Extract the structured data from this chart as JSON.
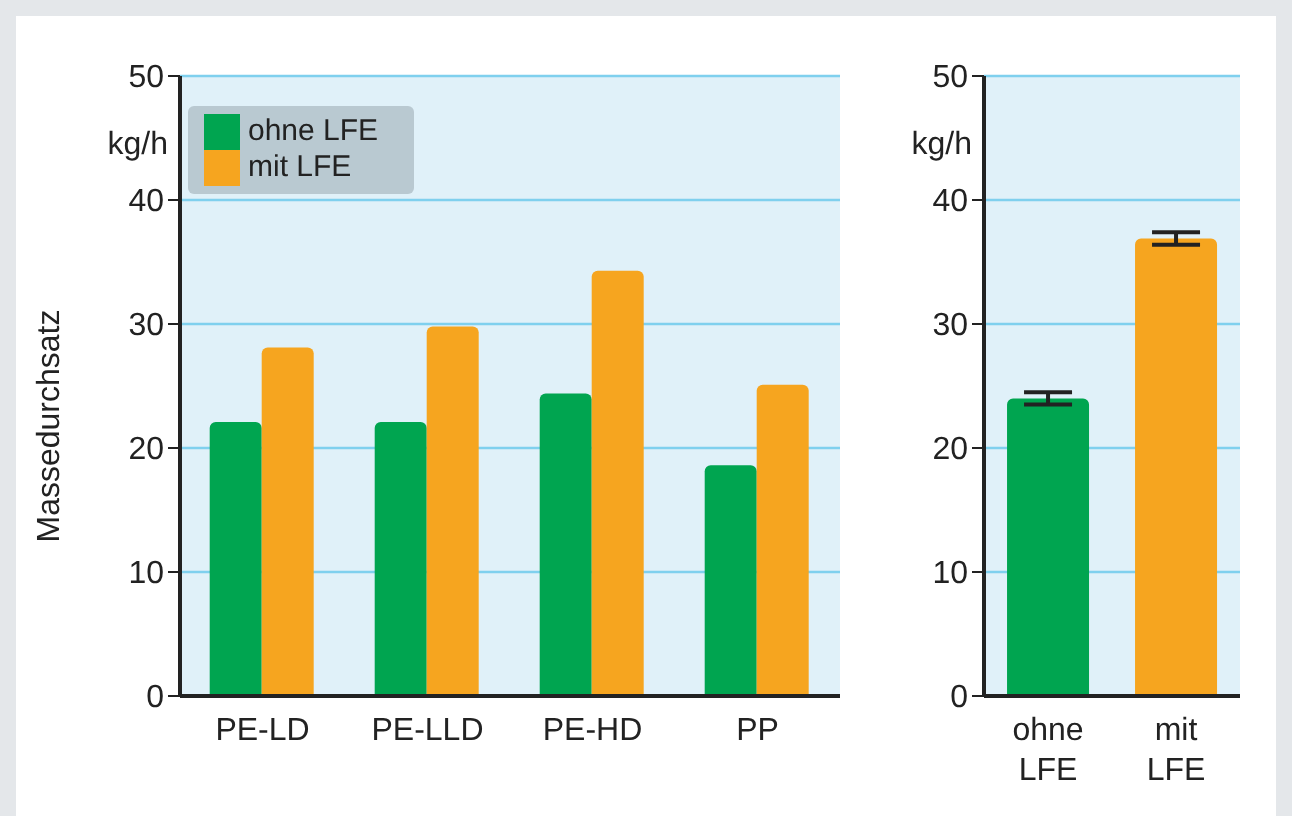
{
  "chart_data": [
    {
      "type": "bar",
      "ylabel": "Massedurchsatz",
      "annotations": [
        "kg/h"
      ],
      "categories": [
        "PE-LD",
        "PE-LLD",
        "PE-HD",
        "PP"
      ],
      "series": [
        {
          "name": "ohne LFE",
          "color": "#00a550",
          "values": [
            22.1,
            22.1,
            24.4,
            18.6
          ]
        },
        {
          "name": "mit LFE",
          "color": "#f6a51f",
          "values": [
            28.1,
            29.8,
            34.3,
            25.1
          ]
        }
      ],
      "ylim": [
        0,
        50
      ],
      "yticks": [
        0,
        10,
        20,
        30,
        40,
        50
      ],
      "grid": "y",
      "legend": "top left"
    },
    {
      "type": "bar",
      "annotations": [
        "kg/h"
      ],
      "categories": [
        "ohne LFE",
        "mit LFE"
      ],
      "values": [
        24.0,
        36.9
      ],
      "colors": [
        "#00a550",
        "#f6a51f"
      ],
      "errors": [
        0.5,
        0.5
      ],
      "ylim": [
        0,
        50
      ],
      "yticks": [
        0,
        10,
        20,
        30,
        40,
        50
      ],
      "grid": "y"
    }
  ]
}
